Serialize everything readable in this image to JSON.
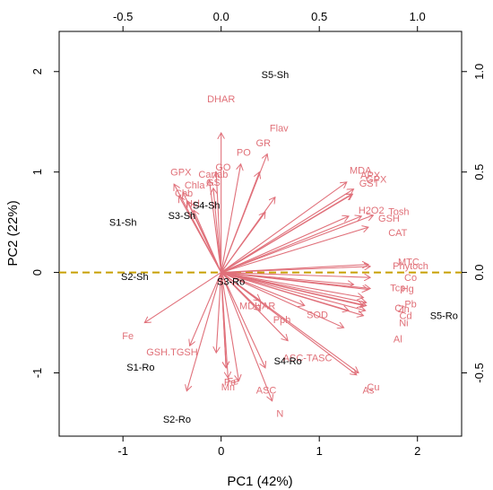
{
  "chart_data": {
    "type": "scatter",
    "subtype": "biplot",
    "title": "",
    "xlabel": "PC1 (42%)",
    "ylabel": "PC2 (22%)",
    "xlim": [
      -1.65,
      2.45
    ],
    "ylim": [
      -1.63,
      2.4
    ],
    "top_axis_lim": [
      -0.825,
      1.225
    ],
    "right_axis_lim": [
      -0.815,
      1.2
    ],
    "bottom_ticks": [
      "-1",
      "0",
      "1",
      "2"
    ],
    "left_ticks": [
      "-1",
      "0",
      "1",
      "2"
    ],
    "top_ticks": [
      "-0.5",
      "0.0",
      "0.5",
      "1.0"
    ],
    "right_ticks": [
      "-0.5",
      "0.0",
      "0.5",
      "1.0"
    ],
    "colors": {
      "arrow": "#e0707a",
      "label": "#e07078",
      "observation": "#000000",
      "reference_line": "#c8a000",
      "axis": "#000000"
    },
    "reference_line": {
      "y": 0,
      "style": "dashed"
    },
    "observations": [
      {
        "label": "S5-Sh",
        "x": 0.55,
        "y": 1.97
      },
      {
        "label": "S1-Sh",
        "x": -1.0,
        "y": 0.5
      },
      {
        "label": "S3-Sh",
        "x": -0.4,
        "y": 0.57
      },
      {
        "label": "S4-Sh",
        "x": -0.15,
        "y": 0.67
      },
      {
        "label": "S2-Sh",
        "x": -0.88,
        "y": -0.04
      },
      {
        "label": "S3-Ro",
        "x": 0.1,
        "y": -0.09
      },
      {
        "label": "S5-Ro",
        "x": 2.27,
        "y": -0.43
      },
      {
        "label": "S4-Ro",
        "x": 0.68,
        "y": -0.88
      },
      {
        "label": "S1-Ro",
        "x": -0.82,
        "y": -0.94
      },
      {
        "label": "S2-Ro",
        "x": -0.45,
        "y": -1.46
      }
    ],
    "variables": [
      {
        "label": "DHAR",
        "x": 0.0,
        "y": 1.39,
        "lx": 0.0,
        "ly": 1.73
      },
      {
        "label": "Flav",
        "x": 0.47,
        "y": 1.18,
        "lx": 0.59,
        "ly": 1.44
      },
      {
        "label": "GR",
        "x": 0.39,
        "y": 1.0,
        "lx": 0.43,
        "ly": 1.29
      },
      {
        "label": "PO",
        "x": 0.2,
        "y": 1.08,
        "lx": 0.23,
        "ly": 1.2
      },
      {
        "label": "GPX",
        "x": -0.48,
        "y": 0.88,
        "lx": -0.41,
        "ly": 1.0
      },
      {
        "label": "GO",
        "x": -0.05,
        "y": 1.0,
        "lx": 0.02,
        "ly": 1.05
      },
      {
        "label": "Cartab",
        "x": -0.12,
        "y": 0.92,
        "lx": -0.08,
        "ly": 0.98
      },
      {
        "label": "GS",
        "x": -0.08,
        "y": 0.84,
        "lx": -0.08,
        "ly": 0.9
      },
      {
        "label": "Chla",
        "x": -0.39,
        "y": 0.8,
        "lx": -0.27,
        "ly": 0.87
      },
      {
        "label": "Chb",
        "x": -0.43,
        "y": 0.76,
        "lx": -0.38,
        "ly": 0.79
      },
      {
        "label": "Hcl",
        "x": -0.34,
        "y": 0.71,
        "lx": -0.29,
        "ly": 0.69
      },
      {
        "label": "MDA",
        "x": 1.28,
        "y": 0.9,
        "lx": 1.42,
        "ly": 1.02
      },
      {
        "label": "APX",
        "x": 1.35,
        "y": 0.83,
        "lx": 1.52,
        "ly": 0.97
      },
      {
        "label": "GPX",
        "x": 1.33,
        "y": 0.78,
        "lx": 1.58,
        "ly": 0.93
      },
      {
        "label": "GST",
        "x": 1.34,
        "y": 0.78,
        "lx": 1.51,
        "ly": 0.89
      },
      {
        "label": "H2O2",
        "x": 1.3,
        "y": 0.56,
        "lx": 1.53,
        "ly": 0.62
      },
      {
        "label": "Tosh",
        "x": 1.55,
        "y": 0.57,
        "lx": 1.81,
        "ly": 0.61
      },
      {
        "label": "GSH",
        "x": 1.43,
        "y": 0.56,
        "lx": 1.71,
        "ly": 0.54
      },
      {
        "label": "CAT",
        "x": 1.5,
        "y": 0.45,
        "lx": 1.8,
        "ly": 0.4
      },
      {
        "label": "MTC",
        "x": 1.5,
        "y": 0.08,
        "lx": 1.91,
        "ly": 0.11
      },
      {
        "label": "Phytoch",
        "x": 1.52,
        "y": 0.06,
        "lx": 1.93,
        "ly": 0.07
      },
      {
        "label": "Co",
        "x": 1.52,
        "y": -0.05,
        "lx": 1.93,
        "ly": -0.05
      },
      {
        "label": "Tcp",
        "x": 1.5,
        "y": -0.17,
        "lx": 1.8,
        "ly": -0.15
      },
      {
        "label": "Hg",
        "x": 1.52,
        "y": -0.16,
        "lx": 1.9,
        "ly": -0.16
      },
      {
        "label": "Pb",
        "x": 1.48,
        "y": -0.3,
        "lx": 1.93,
        "ly": -0.31
      },
      {
        "label": "Cr",
        "x": 1.45,
        "y": -0.33,
        "lx": 1.82,
        "ly": -0.35
      },
      {
        "label": "Zn",
        "x": 1.48,
        "y": -0.33,
        "lx": 1.86,
        "ly": -0.36
      },
      {
        "label": "Cd",
        "x": 1.47,
        "y": -0.38,
        "lx": 1.88,
        "ly": -0.43
      },
      {
        "label": "Ni",
        "x": 1.45,
        "y": -0.43,
        "lx": 1.86,
        "ly": -0.5
      },
      {
        "label": "Al",
        "x": 1.25,
        "y": -0.55,
        "lx": 1.8,
        "ly": -0.66
      },
      {
        "label": "MDHAR",
        "x": 0.4,
        "y": -0.28,
        "lx": 0.37,
        "ly": -0.33
      },
      {
        "label": "SOD",
        "x": 0.85,
        "y": -0.33,
        "lx": 0.98,
        "ly": -0.42
      },
      {
        "label": "Pph",
        "x": 0.4,
        "y": -0.38,
        "lx": 0.62,
        "ly": -0.47
      },
      {
        "label": "ASC-TASC",
        "x": 0.68,
        "y": -0.68,
        "lx": 0.88,
        "ly": -0.85
      },
      {
        "label": "ASC",
        "x": 0.45,
        "y": -0.95,
        "lx": 0.46,
        "ly": -1.17
      },
      {
        "label": "N",
        "x": 0.52,
        "y": -1.28,
        "lx": 0.6,
        "ly": -1.4
      },
      {
        "label": "Cu",
        "x": 1.4,
        "y": -1.0,
        "lx": 1.55,
        "ly": -1.14
      },
      {
        "label": "As",
        "x": 1.38,
        "y": -1.02,
        "lx": 1.5,
        "ly": -1.17
      },
      {
        "label": "Fe",
        "x": -0.78,
        "y": -0.5,
        "lx": -0.95,
        "ly": -0.63
      },
      {
        "label": "GSH.TGSH",
        "x": -0.32,
        "y": -0.73,
        "lx": -0.5,
        "ly": -0.79
      },
      {
        "label": "Mn",
        "x": 0.07,
        "y": -1.05,
        "lx": 0.07,
        "ly": -1.14
      },
      {
        "label": "Fe",
        "x": 0.05,
        "y": -0.95,
        "lx": 0.12,
        "ly": -1.08
      },
      {
        "label": "Pe",
        "x": 0.05,
        "y": -0.95,
        "lx": 0.09,
        "ly": -1.09
      },
      {
        "label": "",
        "x": -0.35,
        "y": -1.18,
        "lx": 0,
        "ly": 0
      },
      {
        "label": "",
        "x": 0.18,
        "y": -1.08,
        "lx": 0,
        "ly": 0
      },
      {
        "label": "",
        "x": -0.05,
        "y": -0.8,
        "lx": 0,
        "ly": 0
      },
      {
        "label": "",
        "x": 0.45,
        "y": 0.6,
        "lx": 0,
        "ly": 0
      },
      {
        "label": "",
        "x": 1.35,
        "y": -0.12,
        "lx": 0,
        "ly": 0
      },
      {
        "label": "",
        "x": 1.45,
        "y": -0.25,
        "lx": 0,
        "ly": 0
      },
      {
        "label": "",
        "x": 1.3,
        "y": -0.38,
        "lx": 0,
        "ly": 0
      },
      {
        "label": "",
        "x": -0.28,
        "y": 0.62,
        "lx": 0,
        "ly": 0
      },
      {
        "label": "",
        "x": 0.55,
        "y": 0.75,
        "lx": 0,
        "ly": 0
      }
    ]
  }
}
